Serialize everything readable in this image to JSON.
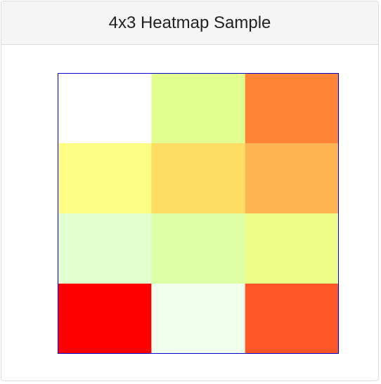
{
  "header": {
    "title": "4x3 Heatmap Sample"
  },
  "chart_data": {
    "type": "heatmap",
    "rows": 4,
    "cols": 3,
    "cells": [
      [
        "#ffffff",
        "#e2fd8f",
        "#ff8536"
      ],
      [
        "#fdfc85",
        "#ffdc63",
        "#ffb453"
      ],
      [
        "#e2ffd0",
        "#dcffa6",
        "#ecfe88"
      ],
      [
        "#ff0000",
        "#f0ffec",
        "#ff5628"
      ]
    ],
    "border_color": "#0000cc",
    "grid": false,
    "legend": "none"
  }
}
